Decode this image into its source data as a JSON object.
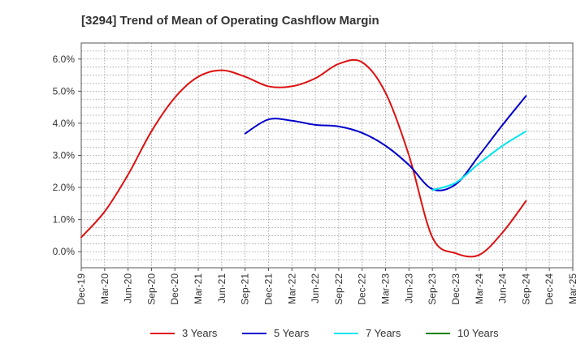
{
  "chart_data": {
    "type": "line",
    "title": "[3294]  Trend of Mean of Operating Cashflow Margin",
    "xlabel": "",
    "ylabel": "",
    "ylim": [
      -0.5,
      6.5
    ],
    "yticks": [
      0.0,
      1.0,
      2.0,
      3.0,
      4.0,
      5.0,
      6.0
    ],
    "ytick_labels": [
      "0.0%",
      "1.0%",
      "2.0%",
      "3.0%",
      "4.0%",
      "5.0%",
      "6.0%"
    ],
    "categories": [
      "Dec-19",
      "Mar-20",
      "Jun-20",
      "Sep-20",
      "Dec-20",
      "Mar-21",
      "Jun-21",
      "Sep-21",
      "Dec-21",
      "Mar-22",
      "Jun-22",
      "Sep-22",
      "Dec-22",
      "Mar-23",
      "Jun-23",
      "Sep-23",
      "Dec-23",
      "Mar-24",
      "Jun-24",
      "Sep-24",
      "Dec-24",
      "Mar-25"
    ],
    "grid": true,
    "legend_position": "bottom",
    "series": [
      {
        "name": "3 Years",
        "color": "#dd1111",
        "values": [
          0.45,
          1.25,
          2.4,
          3.75,
          4.8,
          5.45,
          5.65,
          5.45,
          5.15,
          5.15,
          5.4,
          5.85,
          5.9,
          4.95,
          3.0,
          0.45,
          -0.05,
          -0.1,
          0.6,
          1.58,
          null,
          null
        ]
      },
      {
        "name": "5 Years",
        "color": "#0000cc",
        "values": [
          null,
          null,
          null,
          null,
          null,
          null,
          null,
          3.68,
          4.12,
          4.08,
          3.95,
          3.9,
          3.7,
          3.3,
          2.7,
          1.95,
          2.1,
          3.0,
          3.95,
          4.85,
          null,
          null
        ]
      },
      {
        "name": "7 Years",
        "color": "#00e5ee",
        "values": [
          null,
          null,
          null,
          null,
          null,
          null,
          null,
          null,
          null,
          null,
          null,
          null,
          null,
          null,
          null,
          1.92,
          2.15,
          2.75,
          3.3,
          3.75,
          null,
          null
        ]
      },
      {
        "name": "10 Years",
        "color": "#008000",
        "values": [
          null,
          null,
          null,
          null,
          null,
          null,
          null,
          null,
          null,
          null,
          null,
          null,
          null,
          null,
          null,
          null,
          null,
          null,
          null,
          null,
          null,
          null
        ]
      }
    ]
  }
}
